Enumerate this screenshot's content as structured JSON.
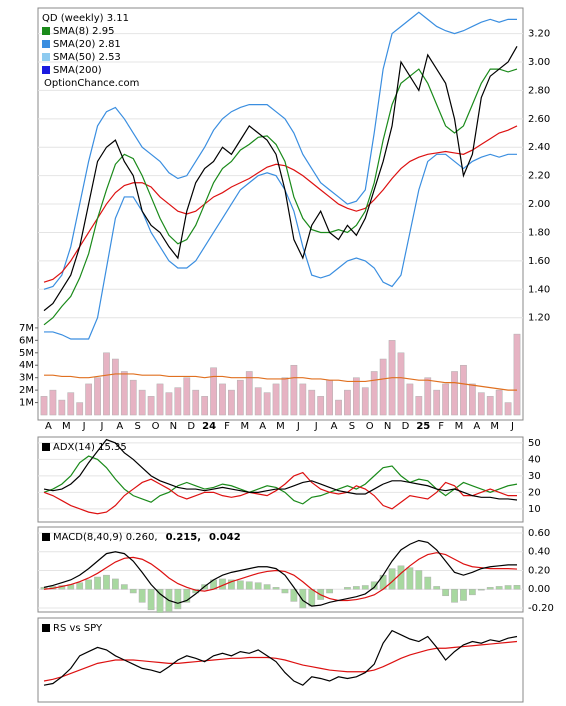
{
  "chart_data": [
    {
      "type": "line",
      "title": "QD (weekly) 3.11",
      "legend": [
        {
          "label": "SMA(8) 2.95",
          "color": "#1a8a1a"
        },
        {
          "label": "SMA(20) 2.81",
          "color": "#3a8ee0"
        },
        {
          "label": "SMA(50) 2.53",
          "color": "#8ecbf0"
        },
        {
          "label": "SMA(200)",
          "color": "#1a1ae0"
        }
      ],
      "source": "OptionChance.com",
      "x_labels": [
        "A",
        "M",
        "J",
        "J",
        "A",
        "S",
        "O",
        "N",
        "D",
        "24",
        "F",
        "M",
        "A",
        "M",
        "J",
        "J",
        "A",
        "S",
        "O",
        "N",
        "D",
        "25",
        "F",
        "M",
        "A",
        "M",
        "J"
      ],
      "ylim": [
        0.48,
        3.38
      ],
      "yticks": [
        {
          "value": 1.2,
          "label": "1.20"
        },
        {
          "value": 1.4,
          "label": "1.40"
        },
        {
          "value": 1.6,
          "label": "1.60"
        },
        {
          "value": 1.8,
          "label": "1.80"
        },
        {
          "value": 2.0,
          "label": "2.00"
        },
        {
          "value": 2.2,
          "label": "2.20"
        },
        {
          "value": 2.4,
          "label": "2.40"
        },
        {
          "value": 2.6,
          "label": "2.60"
        },
        {
          "value": 2.8,
          "label": "2.80"
        },
        {
          "value": 3.0,
          "label": "3.00"
        },
        {
          "value": 3.2,
          "label": "3.20"
        }
      ],
      "y2lim": [
        -0.4,
        32.7
      ],
      "y2ticks": [
        {
          "value": 1,
          "label": "1M"
        },
        {
          "value": 2,
          "label": "2M"
        },
        {
          "value": 3,
          "label": "3M"
        },
        {
          "value": 4,
          "label": "4M"
        },
        {
          "value": 5,
          "label": "5M"
        },
        {
          "value": 6,
          "label": "6M"
        },
        {
          "value": 7,
          "label": "7M"
        }
      ],
      "series": [
        {
          "color": "#e6b3c3",
          "style": "bar",
          "axis": "y2",
          "values": [
            1.5,
            2.0,
            1.2,
            1.8,
            1.0,
            2.5,
            3.0,
            5.0,
            4.5,
            3.5,
            2.8,
            2.0,
            1.5,
            2.5,
            1.8,
            2.2,
            3.0,
            2.0,
            1.5,
            3.8,
            2.5,
            2.0,
            2.8,
            3.5,
            2.2,
            1.8,
            2.5,
            3.0,
            4.0,
            2.5,
            2.0,
            1.5,
            2.8,
            1.2,
            2.0,
            3.0,
            2.2,
            3.5,
            4.5,
            6.0,
            5.0,
            2.5,
            1.5,
            3.0,
            2.0,
            2.5,
            3.5,
            4.0,
            2.5,
            1.8,
            1.5,
            2.0,
            1.0,
            6.5
          ]
        },
        {
          "color": "#e07020",
          "axis": "y2",
          "values": [
            3.2,
            3.2,
            3.1,
            3.1,
            3.0,
            3.0,
            3.1,
            3.2,
            3.3,
            3.3,
            3.3,
            3.2,
            3.2,
            3.2,
            3.1,
            3.1,
            3.1,
            3.1,
            3.0,
            3.1,
            3.1,
            3.0,
            3.0,
            3.0,
            3.0,
            2.9,
            2.9,
            2.9,
            3.0,
            3.0,
            2.9,
            2.9,
            2.8,
            2.8,
            2.7,
            2.7,
            2.7,
            2.8,
            2.9,
            3.0,
            3.0,
            2.9,
            2.8,
            2.8,
            2.7,
            2.6,
            2.6,
            2.5,
            2.4,
            2.3,
            2.2,
            2.1,
            2.0,
            2.0
          ]
        },
        {
          "color": "#3a8ee0",
          "values": [
            1.4,
            1.42,
            1.5,
            1.7,
            2.0,
            2.3,
            2.55,
            2.65,
            2.68,
            2.6,
            2.5,
            2.4,
            2.35,
            2.3,
            2.22,
            2.18,
            2.2,
            2.3,
            2.4,
            2.52,
            2.6,
            2.65,
            2.68,
            2.7,
            2.7,
            2.7,
            2.65,
            2.6,
            2.5,
            2.35,
            2.25,
            2.15,
            2.1,
            2.05,
            2.0,
            2.02,
            2.1,
            2.5,
            2.95,
            3.2,
            3.25,
            3.3,
            3.35,
            3.3,
            3.25,
            3.22,
            3.2,
            3.22,
            3.25,
            3.28,
            3.3,
            3.28,
            3.3,
            3.3
          ]
        },
        {
          "color": "#3a8ee0",
          "values": [
            1.1,
            1.1,
            1.08,
            1.05,
            1.05,
            1.05,
            1.2,
            1.55,
            1.9,
            2.05,
            2.05,
            1.95,
            1.8,
            1.7,
            1.6,
            1.55,
            1.55,
            1.6,
            1.7,
            1.8,
            1.9,
            2.0,
            2.1,
            2.15,
            2.2,
            2.22,
            2.2,
            2.1,
            1.95,
            1.7,
            1.5,
            1.48,
            1.5,
            1.55,
            1.6,
            1.62,
            1.6,
            1.55,
            1.45,
            1.42,
            1.5,
            1.8,
            2.1,
            2.3,
            2.35,
            2.35,
            2.3,
            2.25,
            2.3,
            2.33,
            2.35,
            2.33,
            2.35,
            2.35
          ]
        },
        {
          "color": "#dd1111",
          "values": [
            1.45,
            1.47,
            1.52,
            1.6,
            1.7,
            1.8,
            1.9,
            2.0,
            2.08,
            2.13,
            2.15,
            2.15,
            2.12,
            2.05,
            2.0,
            1.95,
            1.93,
            1.95,
            2.0,
            2.05,
            2.08,
            2.12,
            2.15,
            2.18,
            2.22,
            2.26,
            2.28,
            2.27,
            2.24,
            2.2,
            2.15,
            2.1,
            2.05,
            2.0,
            1.97,
            1.95,
            1.97,
            2.03,
            2.1,
            2.18,
            2.25,
            2.3,
            2.33,
            2.35,
            2.36,
            2.37,
            2.36,
            2.35,
            2.38,
            2.42,
            2.46,
            2.5,
            2.52,
            2.55
          ]
        },
        {
          "color": "#1a8a1a",
          "values": [
            1.15,
            1.2,
            1.28,
            1.35,
            1.48,
            1.65,
            1.9,
            2.1,
            2.28,
            2.35,
            2.32,
            2.2,
            2.05,
            1.9,
            1.78,
            1.72,
            1.75,
            1.85,
            2.0,
            2.15,
            2.25,
            2.3,
            2.38,
            2.42,
            2.47,
            2.48,
            2.42,
            2.3,
            2.05,
            1.9,
            1.82,
            1.8,
            1.8,
            1.82,
            1.8,
            1.85,
            1.95,
            2.15,
            2.45,
            2.7,
            2.85,
            2.9,
            2.95,
            2.85,
            2.7,
            2.55,
            2.5,
            2.55,
            2.7,
            2.85,
            2.95,
            2.95,
            2.93,
            2.95
          ]
        },
        {
          "color": "#000000",
          "values": [
            1.25,
            1.3,
            1.4,
            1.5,
            1.7,
            2.0,
            2.3,
            2.4,
            2.45,
            2.3,
            2.2,
            1.95,
            1.85,
            1.8,
            1.7,
            1.62,
            1.95,
            2.15,
            2.25,
            2.3,
            2.4,
            2.35,
            2.45,
            2.55,
            2.5,
            2.45,
            2.35,
            2.1,
            1.75,
            1.62,
            1.85,
            1.95,
            1.8,
            1.75,
            1.85,
            1.78,
            1.9,
            2.1,
            2.3,
            2.55,
            3.0,
            2.9,
            2.8,
            3.05,
            2.95,
            2.85,
            2.6,
            2.2,
            2.35,
            2.75,
            2.9,
            2.95,
            3.0,
            3.11
          ]
        }
      ]
    },
    {
      "type": "line",
      "title": "ADX(14) 15.35",
      "ylim": [
        2,
        53.6
      ],
      "yticks": [
        10,
        20,
        30,
        40,
        50
      ],
      "series": [
        {
          "color": "#1a8a1a",
          "values": [
            20,
            22,
            25,
            30,
            38,
            42,
            40,
            35,
            28,
            22,
            18,
            16,
            14,
            18,
            20,
            24,
            26,
            24,
            22,
            23,
            25,
            24,
            22,
            20,
            22,
            24,
            23,
            20,
            15,
            13,
            17,
            18,
            20,
            22,
            24,
            22,
            25,
            30,
            35,
            36,
            30,
            26,
            28,
            27,
            22,
            18,
            22,
            26,
            24,
            22,
            20,
            22,
            24,
            25
          ]
        },
        {
          "color": "#dd1111",
          "values": [
            20,
            18,
            15,
            12,
            10,
            8,
            7,
            8,
            12,
            18,
            22,
            26,
            28,
            25,
            22,
            18,
            16,
            18,
            20,
            20,
            18,
            17,
            18,
            20,
            19,
            18,
            21,
            25,
            30,
            32,
            26,
            22,
            20,
            19,
            20,
            24,
            22,
            18,
            12,
            10,
            14,
            18,
            17,
            16,
            20,
            26,
            24,
            18,
            18,
            20,
            22,
            20,
            18,
            18
          ]
        },
        {
          "color": "#000000",
          "values": [
            22,
            21,
            22,
            25,
            30,
            38,
            45,
            52,
            50,
            44,
            40,
            35,
            30,
            27,
            25,
            23,
            22,
            22,
            21,
            22,
            23,
            22,
            21,
            20,
            20,
            21,
            22,
            22,
            24,
            26,
            27,
            25,
            23,
            21,
            20,
            19,
            19,
            22,
            25,
            27,
            27,
            26,
            25,
            24,
            22,
            21,
            22,
            20,
            18,
            17,
            17,
            16,
            16,
            15.35
          ]
        }
      ]
    },
    {
      "type": "line",
      "title_parts": [
        {
          "text": "MACD(8,40,9) 0.260,",
          "color": "#000000"
        },
        {
          "text": "0.215,",
          "color": "#dd1111"
        },
        {
          "text": "0.042",
          "color": "#1a3ad0"
        }
      ],
      "ylim": [
        -0.243,
        0.664
      ],
      "yticks": [
        {
          "value": -0.2,
          "label": "-0.20"
        },
        {
          "value": 0,
          "label": "0.00"
        },
        {
          "value": 0.2,
          "label": "0.20"
        },
        {
          "value": 0.4,
          "label": "0.40"
        },
        {
          "value": 0.6,
          "label": "0.60"
        }
      ],
      "series": [
        {
          "color": "#a8d8a0",
          "style": "bar",
          "values": [
            0.02,
            0.03,
            0.04,
            0.05,
            0.07,
            0.1,
            0.13,
            0.15,
            0.11,
            0.05,
            -0.04,
            -0.14,
            -0.22,
            -0.25,
            -0.24,
            -0.21,
            -0.14,
            -0.04,
            0.05,
            0.1,
            0.11,
            0.1,
            0.09,
            0.08,
            0.07,
            0.05,
            0.02,
            -0.04,
            -0.13,
            -0.2,
            -0.18,
            -0.11,
            -0.04,
            0.0,
            0.02,
            0.03,
            0.04,
            0.08,
            0.15,
            0.22,
            0.25,
            0.23,
            0.2,
            0.13,
            0.03,
            -0.07,
            -0.14,
            -0.12,
            -0.06,
            -0.01,
            0.02,
            0.03,
            0.04,
            0.042
          ]
        },
        {
          "color": "#dd1111",
          "values": [
            0.0,
            0.01,
            0.03,
            0.05,
            0.08,
            0.12,
            0.17,
            0.23,
            0.29,
            0.33,
            0.34,
            0.32,
            0.27,
            0.2,
            0.12,
            0.06,
            0.02,
            -0.01,
            -0.02,
            0.0,
            0.04,
            0.08,
            0.11,
            0.14,
            0.17,
            0.19,
            0.2,
            0.19,
            0.15,
            0.08,
            0.0,
            -0.06,
            -0.1,
            -0.12,
            -0.12,
            -0.11,
            -0.09,
            -0.06,
            0.0,
            0.08,
            0.17,
            0.25,
            0.32,
            0.37,
            0.39,
            0.37,
            0.32,
            0.27,
            0.24,
            0.23,
            0.22,
            0.22,
            0.22,
            0.215
          ]
        },
        {
          "color": "#000000",
          "values": [
            0.02,
            0.04,
            0.07,
            0.1,
            0.15,
            0.22,
            0.3,
            0.38,
            0.4,
            0.38,
            0.3,
            0.18,
            0.05,
            -0.05,
            -0.12,
            -0.15,
            -0.12,
            -0.05,
            0.03,
            0.1,
            0.15,
            0.18,
            0.2,
            0.22,
            0.24,
            0.24,
            0.22,
            0.15,
            0.02,
            -0.12,
            -0.18,
            -0.17,
            -0.14,
            -0.12,
            -0.1,
            -0.08,
            -0.05,
            0.02,
            0.15,
            0.3,
            0.42,
            0.48,
            0.52,
            0.5,
            0.42,
            0.3,
            0.18,
            0.15,
            0.18,
            0.22,
            0.24,
            0.25,
            0.26,
            0.26
          ]
        }
      ]
    },
    {
      "type": "line",
      "title": "RS vs SPY",
      "ylim": [
        0,
        100
      ],
      "series": [
        {
          "color": "#dd1111",
          "values": [
            25,
            27,
            30,
            34,
            38,
            42,
            46,
            48,
            50,
            50,
            50,
            49,
            48,
            47,
            46,
            46,
            47,
            48,
            49,
            50,
            51,
            52,
            52,
            53,
            53,
            53,
            52,
            50,
            47,
            44,
            42,
            40,
            38,
            37,
            36,
            36,
            36,
            38,
            42,
            47,
            52,
            56,
            59,
            62,
            64,
            64,
            65,
            66,
            67,
            68,
            69,
            70,
            71,
            72
          ]
        },
        {
          "color": "#000000",
          "values": [
            20,
            22,
            30,
            40,
            55,
            60,
            65,
            62,
            55,
            50,
            45,
            40,
            38,
            35,
            42,
            50,
            55,
            52,
            48,
            55,
            58,
            55,
            60,
            58,
            62,
            55,
            48,
            35,
            25,
            20,
            30,
            28,
            25,
            30,
            28,
            30,
            35,
            45,
            70,
            85,
            80,
            75,
            72,
            78,
            65,
            50,
            60,
            68,
            72,
            70,
            74,
            72,
            76,
            78
          ]
        }
      ]
    }
  ]
}
